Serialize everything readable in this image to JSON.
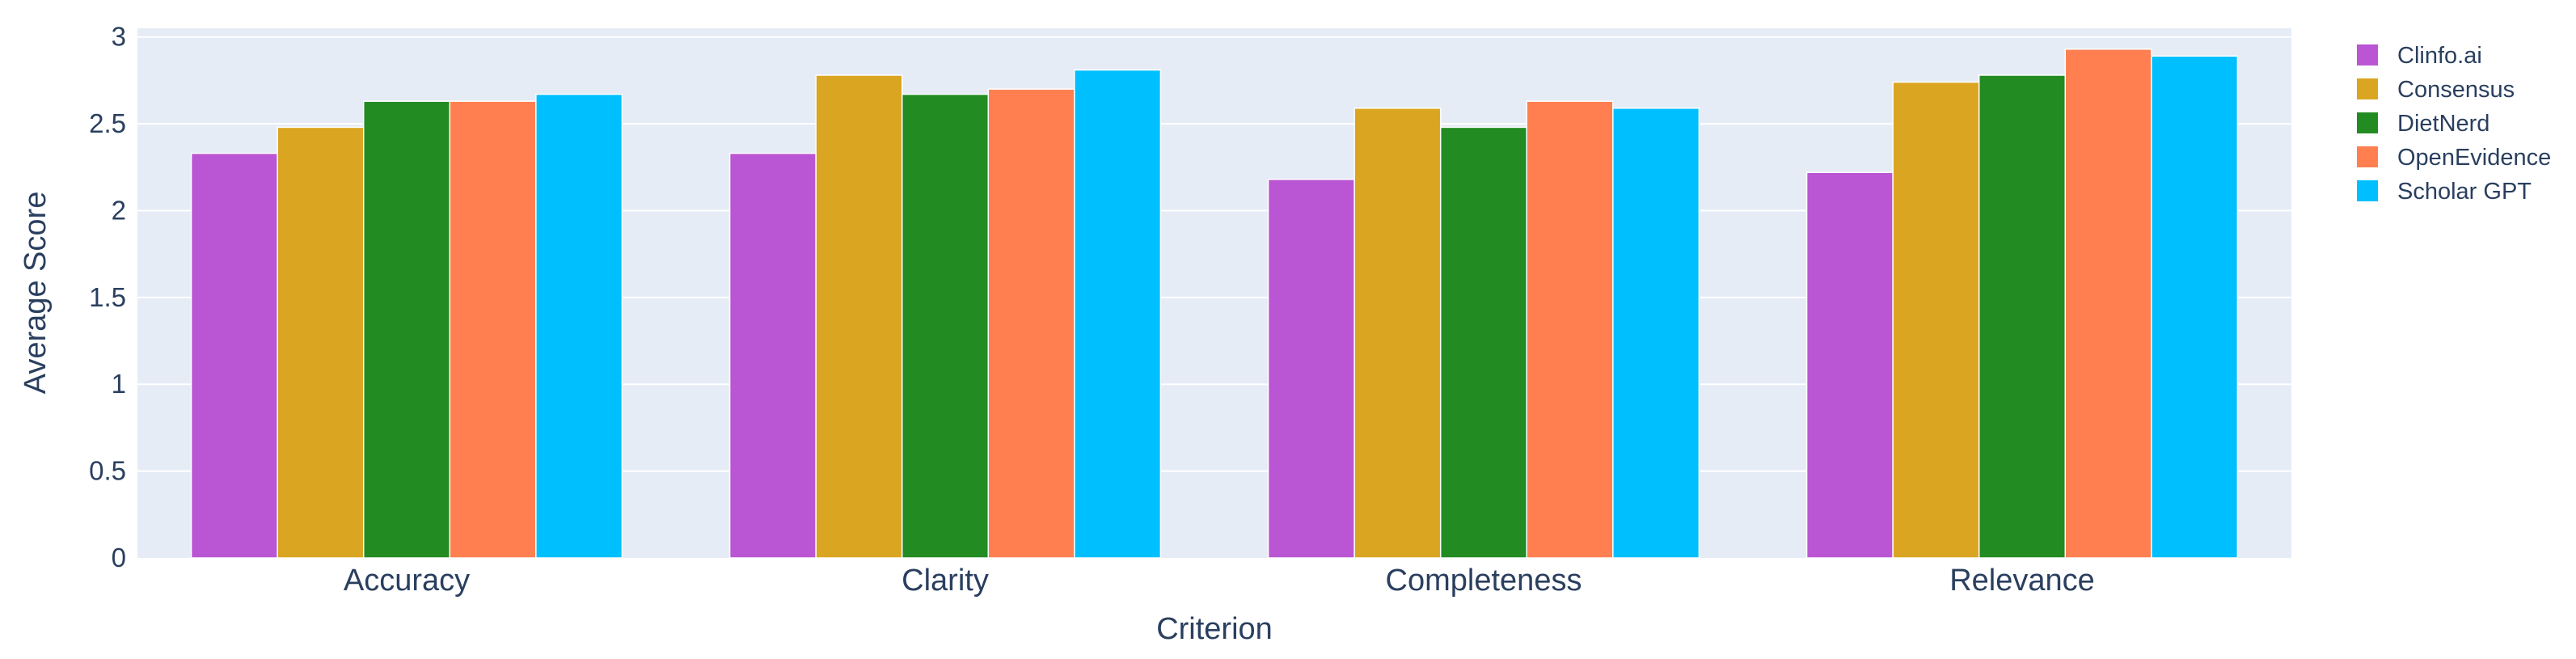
{
  "chart_data": {
    "type": "bar",
    "title": "",
    "xlabel": "Criterion",
    "ylabel": "Average Score",
    "ylim": [
      0,
      3.05
    ],
    "yticks": [
      0,
      0.5,
      1,
      1.5,
      2,
      2.5,
      3
    ],
    "ytick_labels": [
      "0",
      "0.5",
      "1",
      "1.5",
      "2",
      "2.5",
      "3"
    ],
    "grid": true,
    "legend": "right",
    "categories": [
      "Accuracy",
      "Clarity",
      "Completeness",
      "Relevance"
    ],
    "series": [
      {
        "name": "Clinfo.ai",
        "color": "#ba55d3",
        "values": [
          2.33,
          2.33,
          2.18,
          2.22
        ]
      },
      {
        "name": "Consensus",
        "color": "#daa520",
        "values": [
          2.48,
          2.78,
          2.59,
          2.74
        ]
      },
      {
        "name": "DietNerd",
        "color": "#228b22",
        "values": [
          2.63,
          2.67,
          2.48,
          2.78
        ]
      },
      {
        "name": "OpenEvidence",
        "color": "#ff7f50",
        "values": [
          2.63,
          2.7,
          2.63,
          2.93
        ]
      },
      {
        "name": "Scholar GPT",
        "color": "#00bfff",
        "values": [
          2.67,
          2.81,
          2.59,
          2.89
        ]
      }
    ]
  }
}
